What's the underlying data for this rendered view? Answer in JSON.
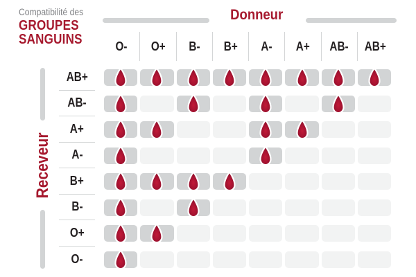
{
  "title": {
    "prefix": "Compatibilité des",
    "line1": "GROUPES",
    "line2": "SANGUINS"
  },
  "axis": {
    "donor_label": "Donneur",
    "receiver_label": "Receveur"
  },
  "donors": [
    "O-",
    "O+",
    "B-",
    "B+",
    "A-",
    "A+",
    "AB-",
    "AB+"
  ],
  "receivers": [
    "AB+",
    "AB-",
    "A+",
    "A-",
    "B+",
    "B-",
    "O+",
    "O-"
  ],
  "matrix": [
    [
      1,
      1,
      1,
      1,
      1,
      1,
      1,
      1
    ],
    [
      1,
      0,
      1,
      0,
      1,
      0,
      1,
      0
    ],
    [
      1,
      1,
      0,
      0,
      1,
      1,
      0,
      0
    ],
    [
      1,
      0,
      0,
      0,
      1,
      0,
      0,
      0
    ],
    [
      1,
      1,
      1,
      1,
      0,
      0,
      0,
      0
    ],
    [
      1,
      0,
      1,
      0,
      0,
      0,
      0,
      0
    ],
    [
      1,
      1,
      0,
      0,
      0,
      0,
      0,
      0
    ],
    [
      1,
      0,
      0,
      0,
      0,
      0,
      0,
      0
    ]
  ],
  "icons": {
    "compatible_marker": "blood-drop-icon"
  },
  "colors": {
    "accent_red": "#A6192E",
    "drop_red": "#A31230",
    "title_gray": "#808285",
    "text_black": "#231F20",
    "cell_compatible": "#D2D4D5",
    "cell_incompatible": "#F2F3F3",
    "separator": "#D4D6D7",
    "axis_bar": "#D2D4D5"
  },
  "chart_data": {
    "type": "heatmap",
    "title": "Compatibilité des GROUPES SANGUINS",
    "x_axis_label": "Donneur",
    "y_axis_label": "Receveur",
    "columns": [
      "O-",
      "O+",
      "B-",
      "B+",
      "A-",
      "A+",
      "AB-",
      "AB+"
    ],
    "rows": [
      "AB+",
      "AB-",
      "A+",
      "A-",
      "B+",
      "B-",
      "O+",
      "O-"
    ],
    "values": [
      [
        1,
        1,
        1,
        1,
        1,
        1,
        1,
        1
      ],
      [
        1,
        0,
        1,
        0,
        1,
        0,
        1,
        0
      ],
      [
        1,
        1,
        0,
        0,
        1,
        1,
        0,
        0
      ],
      [
        1,
        0,
        0,
        0,
        1,
        0,
        0,
        0
      ],
      [
        1,
        1,
        1,
        1,
        0,
        0,
        0,
        0
      ],
      [
        1,
        0,
        1,
        0,
        0,
        0,
        0,
        0
      ],
      [
        1,
        1,
        0,
        0,
        0,
        0,
        0,
        0
      ],
      [
        1,
        0,
        0,
        0,
        0,
        0,
        0,
        0
      ]
    ],
    "value_encoding": "1 = blood-drop shown (compatible), 0 = empty cell (incompatible)",
    "legend_position": "none",
    "grid": "rounded cells"
  }
}
